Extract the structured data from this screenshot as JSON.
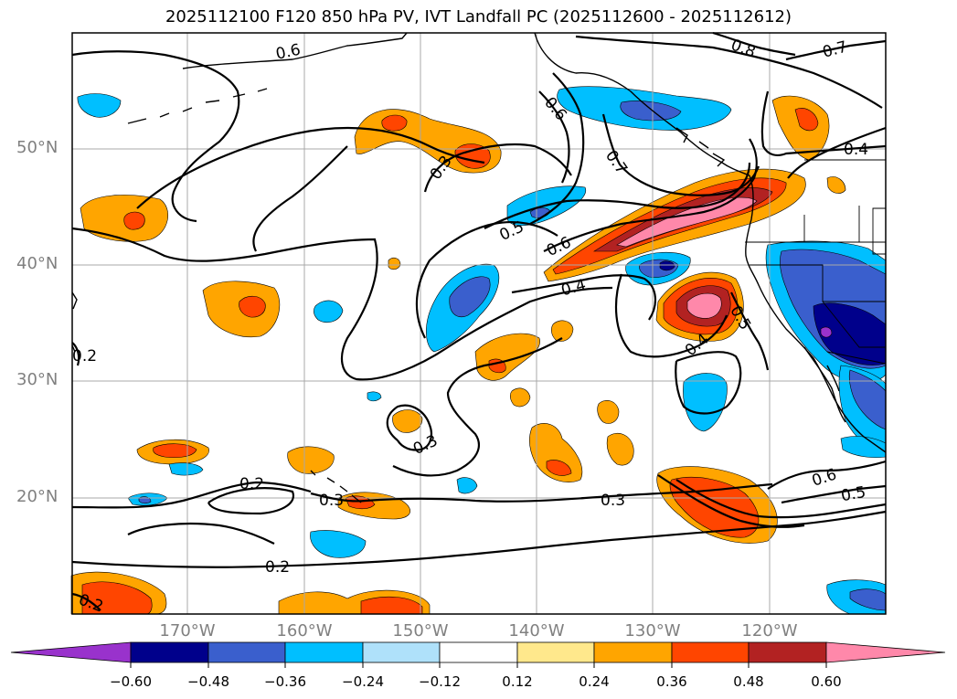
{
  "title": "2025112100 F120 850 hPa PV, IVT Landfall PC (2025112600 - 2025112612)",
  "map": {
    "latitude_labels": [
      "50°N",
      "40°N",
      "30°N",
      "20°N"
    ],
    "longitude_labels": [
      "170°W",
      "160°W",
      "150°W",
      "140°W",
      "130°W",
      "120°W"
    ],
    "contour_labels": [
      "0.6",
      "0.8",
      "0.7",
      "0.4",
      "0.6",
      "0.7",
      "0.3",
      "0.5",
      "0.6",
      "0.4",
      "0.5",
      "0.4",
      "0.2",
      "0.3",
      "0.2",
      "0.3",
      "0.3",
      "0.6",
      "0.5",
      "0.2",
      "0.2"
    ]
  },
  "colorbar": {
    "tick_labels": [
      "−0.60",
      "−0.48",
      "−0.36",
      "−0.24",
      "−0.12",
      "0.12",
      "0.24",
      "0.36",
      "0.48",
      "0.60"
    ],
    "colors": [
      "#9932cc",
      "#00008b",
      "#3a5fcd",
      "#00bfff",
      "#afe1fa",
      "#ffffff",
      "#ffe88c",
      "#ffa500",
      "#ff4500",
      "#b22222",
      "#ff88aa"
    ]
  }
}
